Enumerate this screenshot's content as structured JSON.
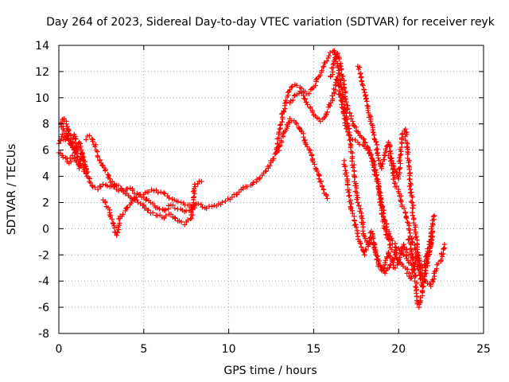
{
  "chart_data": {
    "type": "scatter",
    "title": "Day 264 of 2023, Sidereal Day-to-day VTEC variation (SDTVAR) for receiver reyk",
    "xlabel": "GPS time / hours",
    "ylabel": "SDTVAR / TECUs",
    "xlim": [
      0,
      25
    ],
    "ylim": [
      -8,
      14
    ],
    "xticks": [
      0,
      5,
      10,
      15,
      20,
      25
    ],
    "yticks": [
      -8,
      -6,
      -4,
      -2,
      0,
      2,
      4,
      6,
      8,
      10,
      12,
      14
    ],
    "grid": true,
    "legend": "none",
    "marker": "plus",
    "marker_color": "#ff0000",
    "series": [
      {
        "name": "trace-1",
        "points": [
          [
            0.0,
            6.5
          ],
          [
            0.2,
            7.2
          ],
          [
            0.4,
            6.8
          ],
          [
            0.6,
            7.5
          ],
          [
            0.8,
            6.2
          ],
          [
            1.0,
            5.8
          ],
          [
            1.2,
            6.6
          ],
          [
            1.4,
            5.4
          ],
          [
            1.6,
            4.6
          ],
          [
            1.8,
            3.6
          ],
          [
            2.0,
            3.2
          ],
          [
            2.3,
            3.0
          ],
          [
            2.6,
            3.4
          ],
          [
            3.0,
            3.2
          ],
          [
            3.4,
            3.3
          ],
          [
            3.8,
            2.9
          ],
          [
            4.2,
            3.1
          ],
          [
            4.6,
            2.7
          ],
          [
            5.0,
            2.4
          ],
          [
            5.4,
            2.0
          ],
          [
            5.8,
            1.6
          ],
          [
            6.2,
            1.4
          ],
          [
            6.6,
            1.8
          ],
          [
            7.0,
            1.5
          ],
          [
            7.4,
            1.3
          ],
          [
            7.8,
            1.6
          ],
          [
            8.2,
            1.9
          ],
          [
            8.6,
            1.6
          ],
          [
            9.0,
            1.7
          ],
          [
            9.4,
            1.9
          ],
          [
            9.8,
            2.1
          ],
          [
            10.2,
            2.4
          ],
          [
            10.6,
            2.8
          ],
          [
            11.0,
            3.2
          ],
          [
            11.4,
            3.4
          ],
          [
            11.8,
            3.8
          ],
          [
            12.2,
            4.4
          ],
          [
            12.6,
            5.2
          ],
          [
            13.0,
            6.3
          ],
          [
            13.3,
            7.4
          ],
          [
            13.6,
            8.4
          ],
          [
            14.0,
            8.0
          ],
          [
            14.4,
            7.0
          ],
          [
            14.8,
            5.8
          ],
          [
            15.2,
            4.4
          ],
          [
            15.5,
            3.2
          ],
          [
            15.8,
            2.3
          ]
        ]
      },
      {
        "name": "trace-2",
        "points": [
          [
            1.6,
            6.8
          ],
          [
            1.8,
            7.1
          ],
          [
            2.0,
            6.8
          ],
          [
            2.2,
            6.0
          ],
          [
            2.4,
            5.2
          ],
          [
            2.6,
            4.8
          ],
          [
            3.0,
            3.8
          ],
          [
            3.4,
            3.0
          ],
          [
            3.8,
            2.8
          ],
          [
            4.2,
            2.4
          ],
          [
            4.6,
            2.2
          ],
          [
            5.0,
            1.8
          ],
          [
            5.4,
            1.2
          ],
          [
            5.8,
            1.0
          ],
          [
            6.2,
            0.8
          ],
          [
            6.6,
            1.1
          ],
          [
            7.0,
            0.6
          ],
          [
            7.4,
            0.3
          ],
          [
            7.8,
            0.8
          ],
          [
            8.0,
            3.4
          ],
          [
            8.4,
            3.6
          ]
        ]
      },
      {
        "name": "trace-3",
        "points": [
          [
            2.6,
            2.2
          ],
          [
            2.9,
            1.6
          ],
          [
            3.2,
            0.4
          ],
          [
            3.4,
            -0.5
          ],
          [
            3.6,
            0.8
          ],
          [
            4.0,
            1.6
          ],
          [
            4.4,
            2.2
          ],
          [
            4.8,
            2.6
          ],
          [
            5.2,
            2.8
          ],
          [
            5.6,
            2.9
          ],
          [
            6.0,
            2.8
          ],
          [
            6.4,
            2.5
          ],
          [
            6.8,
            2.2
          ],
          [
            7.2,
            2.0
          ],
          [
            7.6,
            1.8
          ],
          [
            8.0,
            1.6
          ]
        ]
      },
      {
        "name": "trace-4",
        "points": [
          [
            12.8,
            5.8
          ],
          [
            13.0,
            7.6
          ],
          [
            13.3,
            9.4
          ],
          [
            13.6,
            10.6
          ],
          [
            13.9,
            11.0
          ],
          [
            14.2,
            10.8
          ],
          [
            14.6,
            10.3
          ],
          [
            15.0,
            10.8
          ],
          [
            15.3,
            11.6
          ],
          [
            15.6,
            12.4
          ],
          [
            15.9,
            13.2
          ],
          [
            16.2,
            13.6
          ],
          [
            16.4,
            12.6
          ],
          [
            16.6,
            11.0
          ],
          [
            16.8,
            9.2
          ],
          [
            17.0,
            8.0
          ],
          [
            17.2,
            6.4
          ],
          [
            17.4,
            4.0
          ],
          [
            17.6,
            2.0
          ],
          [
            17.8,
            1.2
          ],
          [
            18.0,
            -0.6
          ],
          [
            18.2,
            -1.2
          ],
          [
            18.4,
            -0.8
          ],
          [
            18.6,
            -1.4
          ],
          [
            18.9,
            -2.8
          ],
          [
            19.2,
            -3.4
          ],
          [
            19.5,
            -2.8
          ],
          [
            19.8,
            -2.0
          ],
          [
            20.1,
            -2.6
          ],
          [
            20.4,
            -3.0
          ],
          [
            20.7,
            -3.8
          ],
          [
            21.0,
            -2.6
          ],
          [
            21.3,
            -3.4
          ],
          [
            21.6,
            -4.0
          ],
          [
            21.9,
            -4.4
          ],
          [
            22.2,
            -3.2
          ],
          [
            22.5,
            -2.4
          ],
          [
            22.7,
            -1.2
          ]
        ]
      },
      {
        "name": "trace-5",
        "points": [
          [
            13.6,
            9.6
          ],
          [
            13.9,
            10.2
          ],
          [
            14.2,
            10.5
          ],
          [
            14.5,
            9.9
          ],
          [
            14.8,
            9.2
          ],
          [
            15.1,
            8.6
          ],
          [
            15.4,
            8.2
          ],
          [
            15.7,
            8.6
          ],
          [
            16.0,
            9.6
          ],
          [
            16.2,
            10.4
          ],
          [
            16.4,
            11.6
          ],
          [
            16.6,
            9.8
          ],
          [
            16.8,
            8.4
          ],
          [
            17.0,
            7.4
          ],
          [
            17.3,
            6.8
          ],
          [
            17.6,
            6.6
          ],
          [
            17.9,
            6.4
          ],
          [
            18.2,
            6.1
          ],
          [
            18.5,
            5.2
          ],
          [
            18.8,
            3.6
          ],
          [
            19.0,
            1.4
          ],
          [
            19.2,
            0.0
          ],
          [
            19.4,
            -0.8
          ],
          [
            19.6,
            -1.6
          ],
          [
            19.8,
            -1.8
          ],
          [
            20.0,
            -1.5
          ],
          [
            20.3,
            -2.0
          ],
          [
            20.6,
            -2.6
          ],
          [
            20.9,
            -3.2
          ]
        ]
      },
      {
        "name": "trace-6",
        "points": [
          [
            16.0,
            11.6
          ],
          [
            16.2,
            12.8
          ],
          [
            16.4,
            13.4
          ],
          [
            16.6,
            12.4
          ],
          [
            16.8,
            10.8
          ],
          [
            17.0,
            9.2
          ],
          [
            17.2,
            8.4
          ],
          [
            17.4,
            7.8
          ],
          [
            17.6,
            7.4
          ],
          [
            17.8,
            7.0
          ],
          [
            18.0,
            6.6
          ],
          [
            18.2,
            6.2
          ],
          [
            18.4,
            5.4
          ],
          [
            18.6,
            4.4
          ],
          [
            18.8,
            3.2
          ],
          [
            19.0,
            2.0
          ],
          [
            19.2,
            0.6
          ],
          [
            19.5,
            -0.6
          ],
          [
            19.8,
            -1.4
          ],
          [
            20.0,
            -2.4
          ],
          [
            20.3,
            -1.2
          ],
          [
            20.6,
            -2.0
          ],
          [
            21.0,
            -2.2
          ],
          [
            21.4,
            -3.0
          ],
          [
            21.8,
            -1.8
          ],
          [
            22.0,
            -0.6
          ]
        ]
      },
      {
        "name": "trace-7",
        "points": [
          [
            16.8,
            5.2
          ],
          [
            17.0,
            3.4
          ],
          [
            17.2,
            1.6
          ],
          [
            17.4,
            0.6
          ],
          [
            17.6,
            -0.6
          ],
          [
            17.8,
            -1.4
          ],
          [
            18.0,
            -2.0
          ],
          [
            18.2,
            -1.2
          ],
          [
            18.4,
            -0.2
          ],
          [
            18.6,
            -1.6
          ],
          [
            18.8,
            -2.6
          ],
          [
            19.0,
            -3.2
          ],
          [
            19.2,
            -2.6
          ],
          [
            19.4,
            -1.8
          ],
          [
            19.6,
            -2.4
          ],
          [
            19.8,
            -3.0
          ],
          [
            20.0,
            -2.6
          ]
        ]
      },
      {
        "name": "trace-8",
        "points": [
          [
            17.6,
            12.4
          ],
          [
            17.8,
            11.6
          ],
          [
            18.0,
            10.4
          ],
          [
            18.2,
            9.2
          ],
          [
            18.4,
            8.0
          ],
          [
            18.6,
            6.8
          ],
          [
            18.8,
            5.4
          ],
          [
            19.0,
            4.6
          ],
          [
            19.2,
            5.8
          ],
          [
            19.4,
            6.6
          ],
          [
            19.6,
            5.0
          ],
          [
            19.8,
            3.2
          ],
          [
            20.0,
            3.0
          ],
          [
            20.2,
            1.8
          ],
          [
            20.4,
            1.2
          ],
          [
            20.6,
            0.0
          ],
          [
            20.8,
            -1.0
          ],
          [
            21.0,
            -1.6
          ],
          [
            21.2,
            -2.4
          ]
        ]
      },
      {
        "name": "trace-9",
        "points": [
          [
            19.4,
            5.6
          ],
          [
            19.6,
            5.2
          ],
          [
            19.8,
            4.4
          ],
          [
            20.0,
            3.8
          ],
          [
            20.2,
            7.2
          ],
          [
            20.4,
            7.6
          ],
          [
            20.5,
            6.2
          ],
          [
            20.6,
            4.8
          ],
          [
            20.7,
            3.0
          ],
          [
            20.8,
            2.0
          ],
          [
            20.9,
            0.8
          ],
          [
            21.0,
            -0.4
          ],
          [
            21.1,
            -1.4
          ],
          [
            21.2,
            -2.6
          ],
          [
            21.3,
            -3.8
          ],
          [
            21.4,
            -4.4
          ],
          [
            21.6,
            -3.2
          ],
          [
            21.8,
            -1.8
          ],
          [
            22.0,
            0.4
          ],
          [
            22.1,
            1.0
          ]
        ]
      },
      {
        "name": "trace-10",
        "points": [
          [
            0.0,
            5.8
          ],
          [
            0.2,
            5.6
          ],
          [
            0.4,
            5.4
          ],
          [
            0.6,
            5.0
          ],
          [
            0.8,
            5.6
          ],
          [
            1.0,
            5.2
          ],
          [
            1.2,
            4.6
          ],
          [
            1.4,
            5.8
          ],
          [
            1.6,
            4.2
          ],
          [
            0.1,
            8.0
          ],
          [
            0.3,
            8.4
          ],
          [
            0.5,
            7.8
          ],
          [
            0.7,
            6.4
          ],
          [
            0.9,
            7.2
          ],
          [
            1.1,
            6.0
          ]
        ]
      },
      {
        "name": "trace-11",
        "points": [
          [
            20.6,
            -0.8
          ],
          [
            20.8,
            -2.0
          ],
          [
            21.0,
            -3.6
          ],
          [
            21.1,
            -5.6
          ],
          [
            21.2,
            -6.0
          ],
          [
            21.4,
            -4.8
          ],
          [
            21.6,
            -3.0
          ],
          [
            21.8,
            -1.2
          ],
          [
            22.0,
            -0.2
          ]
        ]
      }
    ]
  }
}
